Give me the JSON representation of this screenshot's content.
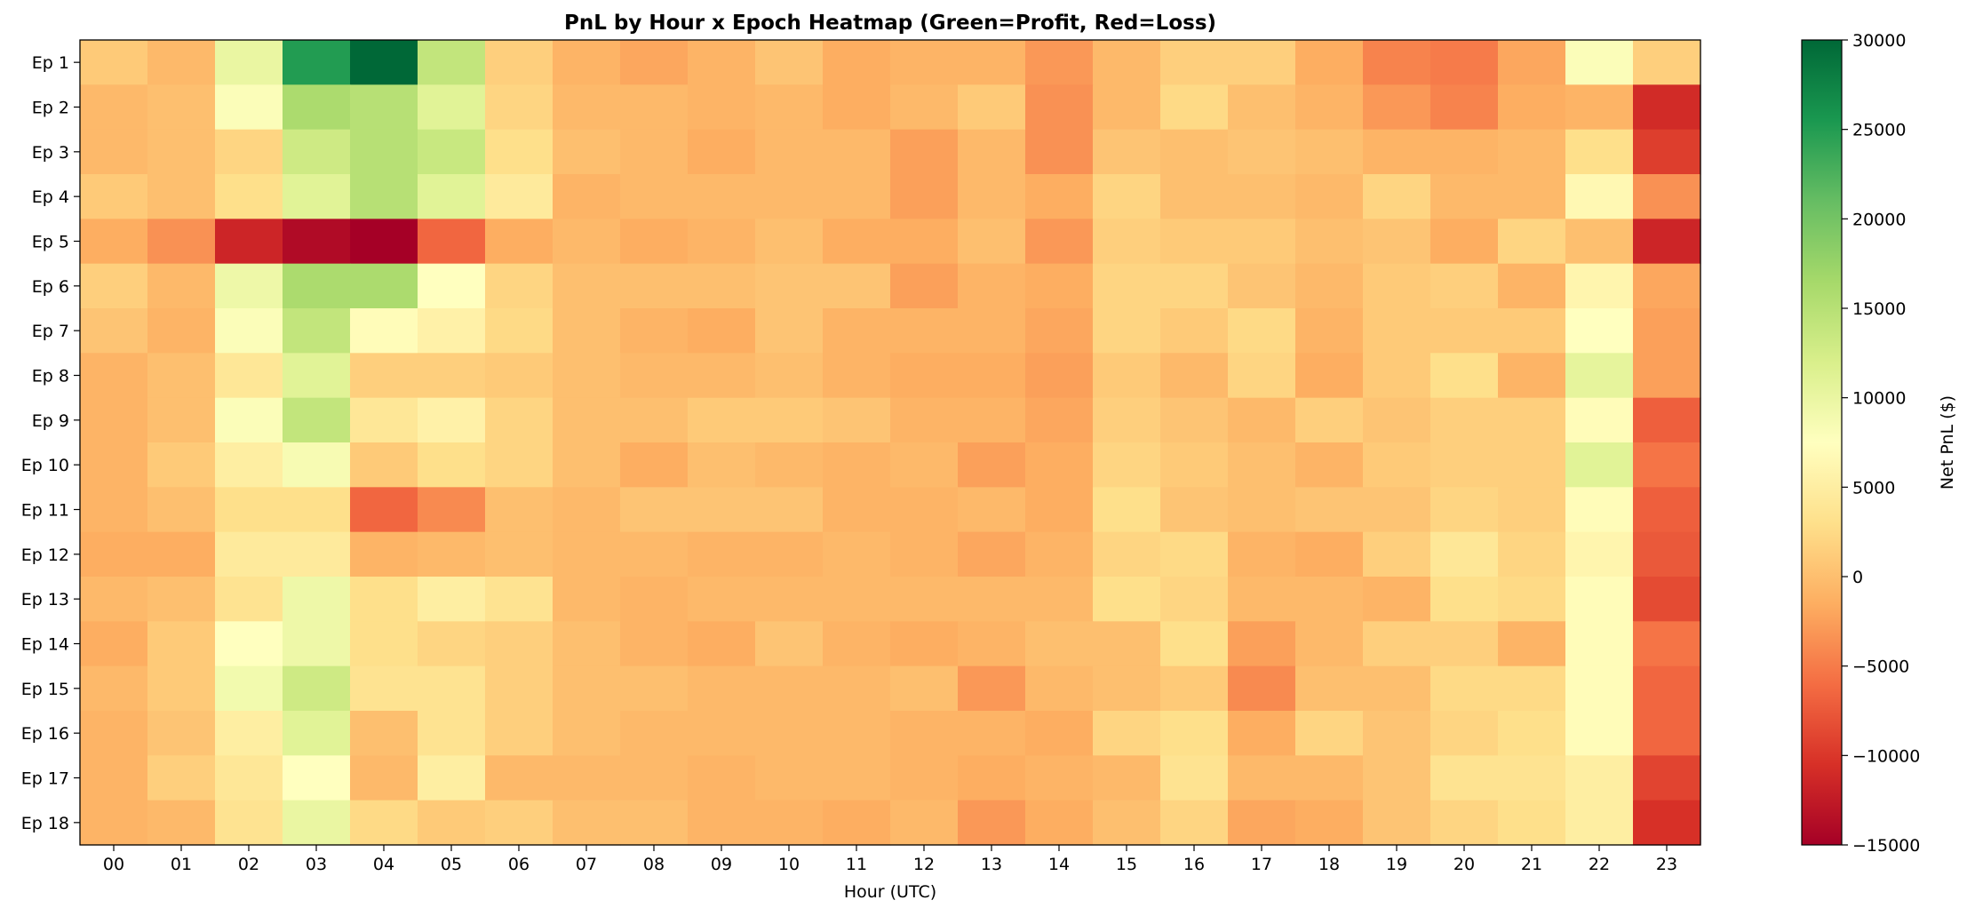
{
  "chart_data": {
    "type": "heatmap",
    "title": "PnL by Hour x Epoch Heatmap (Green=Profit, Red=Loss)",
    "xlabel": "Hour (UTC)",
    "ylabel": "",
    "x_categories": [
      "00",
      "01",
      "02",
      "03",
      "04",
      "05",
      "06",
      "07",
      "08",
      "09",
      "10",
      "11",
      "12",
      "13",
      "14",
      "15",
      "16",
      "17",
      "18",
      "19",
      "20",
      "21",
      "22",
      "23"
    ],
    "y_categories": [
      "Ep 1",
      "Ep 2",
      "Ep 3",
      "Ep 4",
      "Ep 5",
      "Ep 6",
      "Ep 7",
      "Ep 8",
      "Ep 9",
      "Ep 10",
      "Ep 11",
      "Ep 12",
      "Ep 13",
      "Ep 14",
      "Ep 15",
      "Ep 16",
      "Ep 17",
      "Ep 18"
    ],
    "values": [
      [
        1000,
        -500,
        10000,
        25000,
        30000,
        14000,
        1500,
        -1000,
        -2000,
        -1000,
        500,
        -1500,
        -1000,
        -1000,
        -3000,
        -500,
        1500,
        1500,
        -1500,
        -4500,
        -5000,
        -2000,
        8000,
        1500
      ],
      [
        -500,
        0,
        8000,
        16000,
        15000,
        11000,
        2000,
        -500,
        -500,
        -1000,
        -500,
        -1500,
        -500,
        1000,
        -3500,
        -500,
        2500,
        0,
        -1000,
        -3000,
        -4500,
        -1500,
        -1000,
        -11000
      ],
      [
        -500,
        0,
        2000,
        13000,
        15000,
        13500,
        3000,
        0,
        -500,
        -1500,
        -500,
        -500,
        -2500,
        -500,
        -3500,
        500,
        0,
        500,
        0,
        -1000,
        -1000,
        -500,
        3000,
        -9500
      ],
      [
        1000,
        0,
        3000,
        11000,
        15000,
        11000,
        4500,
        -1000,
        -500,
        -500,
        -500,
        -500,
        -2500,
        -500,
        -1500,
        2000,
        0,
        0,
        -500,
        2000,
        -500,
        -500,
        6500,
        -3500
      ],
      [
        -1500,
        -3500,
        -11500,
        -14000,
        -15000,
        -6500,
        -1500,
        -500,
        -1500,
        -1000,
        0,
        -1500,
        -1500,
        0,
        -3000,
        1500,
        1000,
        1000,
        0,
        500,
        -1500,
        2000,
        0,
        -11500
      ],
      [
        1500,
        -500,
        9500,
        16000,
        16000,
        7500,
        2000,
        0,
        0,
        0,
        500,
        500,
        -2500,
        -1000,
        -1500,
        2000,
        2000,
        500,
        -500,
        1000,
        1500,
        -1000,
        6000,
        -2000
      ],
      [
        500,
        -1000,
        8000,
        14000,
        7000,
        5500,
        2500,
        0,
        -1000,
        -1500,
        500,
        -1000,
        -1000,
        -1000,
        -2000,
        2000,
        1000,
        2500,
        -1000,
        1000,
        1000,
        1000,
        7500,
        -2500
      ],
      [
        -1000,
        0,
        4000,
        11000,
        1500,
        1500,
        1000,
        0,
        -500,
        -500,
        0,
        -1000,
        -1500,
        -1500,
        -2500,
        1000,
        -500,
        2000,
        -1500,
        1000,
        3000,
        -1000,
        10500,
        -2500
      ],
      [
        -1000,
        0,
        8000,
        14000,
        4000,
        5500,
        2000,
        0,
        0,
        1000,
        1000,
        500,
        -1000,
        -1000,
        -2000,
        1500,
        500,
        -500,
        1500,
        500,
        1500,
        1500,
        7000,
        -7000
      ],
      [
        -1000,
        1000,
        5000,
        8500,
        1000,
        3000,
        2000,
        0,
        -1500,
        0,
        -500,
        -1000,
        -500,
        -2500,
        -1500,
        2000,
        1000,
        0,
        -1000,
        1000,
        1500,
        1500,
        11000,
        -5500
      ],
      [
        -1000,
        0,
        3000,
        3000,
        -6500,
        -4000,
        0,
        -500,
        500,
        500,
        500,
        -1000,
        -1000,
        -500,
        -1500,
        3000,
        500,
        0,
        500,
        500,
        2000,
        1500,
        7000,
        -7000
      ],
      [
        -1500,
        -1500,
        4500,
        4500,
        -1000,
        -500,
        0,
        -500,
        -500,
        -1000,
        -1000,
        -500,
        -1000,
        -2000,
        -1000,
        2000,
        2500,
        -1000,
        -1500,
        1500,
        4000,
        2000,
        6000,
        -7500
      ],
      [
        -500,
        0,
        3500,
        9500,
        3000,
        5000,
        3500,
        -500,
        -1000,
        -500,
        -500,
        -500,
        -500,
        -500,
        -500,
        3000,
        2000,
        -500,
        -500,
        -1000,
        3000,
        2500,
        7000,
        -8500
      ],
      [
        -1500,
        1000,
        7500,
        9500,
        3000,
        2000,
        1500,
        0,
        -1000,
        -1500,
        500,
        -1000,
        -1500,
        -1000,
        0,
        0,
        3000,
        -2500,
        -500,
        1500,
        1500,
        -1000,
        7000,
        -5500
      ],
      [
        -500,
        1000,
        9000,
        13000,
        3500,
        3500,
        1500,
        0,
        0,
        -500,
        -500,
        -500,
        0,
        -3000,
        -500,
        0,
        1000,
        -4000,
        0,
        0,
        2500,
        2500,
        7000,
        -6500
      ],
      [
        -1000,
        500,
        5000,
        11000,
        0,
        3500,
        1500,
        0,
        -500,
        -500,
        -500,
        -500,
        -1000,
        -1000,
        -1500,
        2000,
        3000,
        -1500,
        2000,
        500,
        2000,
        3000,
        7000,
        -6500
      ],
      [
        -1000,
        1500,
        4000,
        7500,
        -500,
        5000,
        -500,
        -500,
        -500,
        -1000,
        -500,
        -500,
        -1000,
        -1500,
        -1000,
        -500,
        3500,
        -500,
        -500,
        500,
        3500,
        3500,
        5000,
        -9000
      ],
      [
        -1000,
        -500,
        3500,
        10000,
        2500,
        1000,
        1500,
        0,
        0,
        -1000,
        -1000,
        -1500,
        -500,
        -3000,
        -1500,
        0,
        2000,
        -2000,
        -1500,
        500,
        2000,
        3000,
        5000,
        -10500
      ]
    ],
    "colorbar": {
      "label": "Net PnL ($)",
      "min": -15000,
      "max": 30000,
      "ticks": [
        "30000",
        "25000",
        "20000",
        "15000",
        "10000",
        "5000",
        "0",
        "−5000",
        "−10000",
        "−15000"
      ],
      "tick_values": [
        30000,
        25000,
        20000,
        15000,
        10000,
        5000,
        0,
        -5000,
        -10000,
        -15000
      ],
      "colormap": "RdYlGn",
      "colors": [
        "#a50026",
        "#d73027",
        "#f46d43",
        "#fdae61",
        "#fee08b",
        "#ffffbf",
        "#d9ef8b",
        "#a6d96a",
        "#66bd63",
        "#1a9850",
        "#006837"
      ]
    },
    "grid": false,
    "legend": "colorbar-right"
  }
}
